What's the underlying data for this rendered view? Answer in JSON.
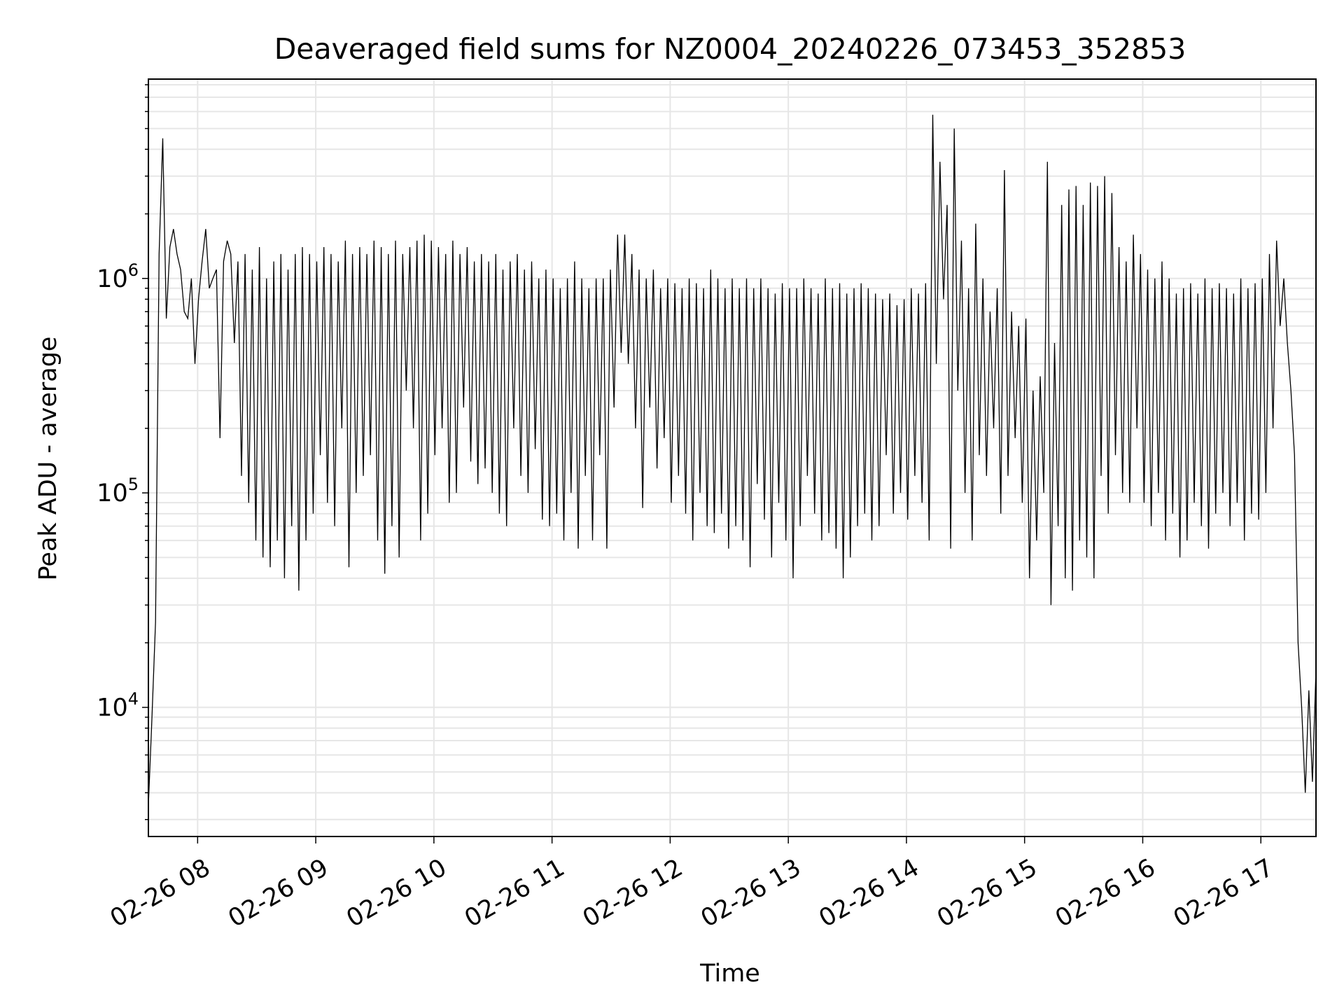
{
  "chart_data": {
    "type": "line",
    "title": "Deaveraged field sums for NZ0004_20240226_073453_352853",
    "xlabel": "Time",
    "ylabel": "Peak ADU - average",
    "yscale": "log",
    "grid": true,
    "grid_color": "#e6e6e6",
    "line_color": "#000000",
    "xlim": [
      "2024-02-26 07:35",
      "2024-02-26 17:28"
    ],
    "ylim": [
      2500,
      8500000
    ],
    "x_ticks": [
      "02-26 08",
      "02-26 09",
      "02-26 10",
      "02-26 11",
      "02-26 12",
      "02-26 13",
      "02-26 14",
      "02-26 15",
      "02-26 16",
      "02-26 17"
    ],
    "y_ticks": [
      {
        "value": 10000,
        "base": "10",
        "exp": "4"
      },
      {
        "value": 100000,
        "base": "10",
        "exp": "5"
      },
      {
        "value": 1000000,
        "base": "10",
        "exp": "6"
      }
    ],
    "series": [
      {
        "x_start": "2024-02-26 07:35",
        "x_end": "2024-02-26 17:28",
        "values": [
          3500,
          9000,
          25000,
          1300000,
          4500000,
          650000,
          1400000,
          1700000,
          1300000,
          1100000,
          700000,
          650000,
          1000000,
          400000,
          800000,
          1200000,
          1700000,
          900000,
          1000000,
          1100000,
          180000,
          1200000,
          1500000,
          1300000,
          500000,
          1200000,
          120000,
          1300000,
          90000,
          1100000,
          60000,
          1400000,
          50000,
          1000000,
          45000,
          1200000,
          60000,
          1300000,
          40000,
          1100000,
          70000,
          1300000,
          35000,
          1400000,
          60000,
          1300000,
          80000,
          1200000,
          150000,
          1400000,
          90000,
          1300000,
          70000,
          1200000,
          200000,
          1500000,
          45000,
          1300000,
          100000,
          1400000,
          120000,
          1300000,
          150000,
          1500000,
          60000,
          1400000,
          42000,
          1300000,
          70000,
          1500000,
          50000,
          1300000,
          300000,
          1400000,
          200000,
          1500000,
          60000,
          1600000,
          80000,
          1500000,
          150000,
          1400000,
          200000,
          1300000,
          90000,
          1500000,
          100000,
          1300000,
          250000,
          1400000,
          140000,
          1200000,
          110000,
          1300000,
          130000,
          1200000,
          100000,
          1300000,
          80000,
          1100000,
          70000,
          1200000,
          200000,
          1300000,
          120000,
          1100000,
          100000,
          1200000,
          160000,
          1000000,
          75000,
          1100000,
          70000,
          1000000,
          80000,
          900000,
          60000,
          1000000,
          100000,
          1200000,
          55000,
          1000000,
          120000,
          900000,
          60000,
          1000000,
          150000,
          1000000,
          55000,
          1100000,
          250000,
          1600000,
          450000,
          1600000,
          400000,
          1300000,
          200000,
          1100000,
          85000,
          1000000,
          250000,
          1100000,
          130000,
          900000,
          180000,
          1000000,
          90000,
          950000,
          120000,
          900000,
          80000,
          1000000,
          60000,
          950000,
          100000,
          900000,
          70000,
          1100000,
          65000,
          1000000,
          80000,
          900000,
          55000,
          1000000,
          70000,
          900000,
          60000,
          1000000,
          45000,
          900000,
          110000,
          1000000,
          75000,
          900000,
          50000,
          850000,
          90000,
          950000,
          60000,
          900000,
          40000,
          900000,
          70000,
          1000000,
          120000,
          900000,
          80000,
          850000,
          60000,
          1000000,
          65000,
          900000,
          55000,
          950000,
          40000,
          850000,
          50000,
          900000,
          70000,
          950000,
          80000,
          900000,
          60000,
          850000,
          70000,
          800000,
          150000,
          850000,
          80000,
          750000,
          100000,
          800000,
          75000,
          900000,
          120000,
          850000,
          90000,
          950000,
          60000,
          5800000,
          400000,
          3500000,
          800000,
          2200000,
          55000,
          5000000,
          300000,
          1500000,
          100000,
          900000,
          60000,
          1800000,
          150000,
          1000000,
          120000,
          700000,
          200000,
          900000,
          80000,
          3200000,
          120000,
          700000,
          180000,
          600000,
          90000,
          650000,
          40000,
          300000,
          60000,
          350000,
          100000,
          3500000,
          30000,
          500000,
          70000,
          2200000,
          40000,
          2600000,
          35000,
          2700000,
          60000,
          2200000,
          50000,
          2800000,
          40000,
          2700000,
          120000,
          3000000,
          80000,
          2500000,
          150000,
          1400000,
          100000,
          1200000,
          90000,
          1600000,
          200000,
          1300000,
          90000,
          1100000,
          70000,
          1000000,
          100000,
          1200000,
          60000,
          1000000,
          80000,
          850000,
          50000,
          900000,
          60000,
          950000,
          90000,
          850000,
          70000,
          1000000,
          55000,
          900000,
          80000,
          950000,
          100000,
          900000,
          70000,
          850000,
          90000,
          1000000,
          60000,
          900000,
          80000,
          950000,
          75000,
          1000000,
          100000,
          1300000,
          200000,
          1500000,
          600000,
          1000000,
          500000,
          300000,
          150000,
          20000,
          10000,
          4000,
          12000,
          4500,
          15000
        ]
      }
    ]
  }
}
